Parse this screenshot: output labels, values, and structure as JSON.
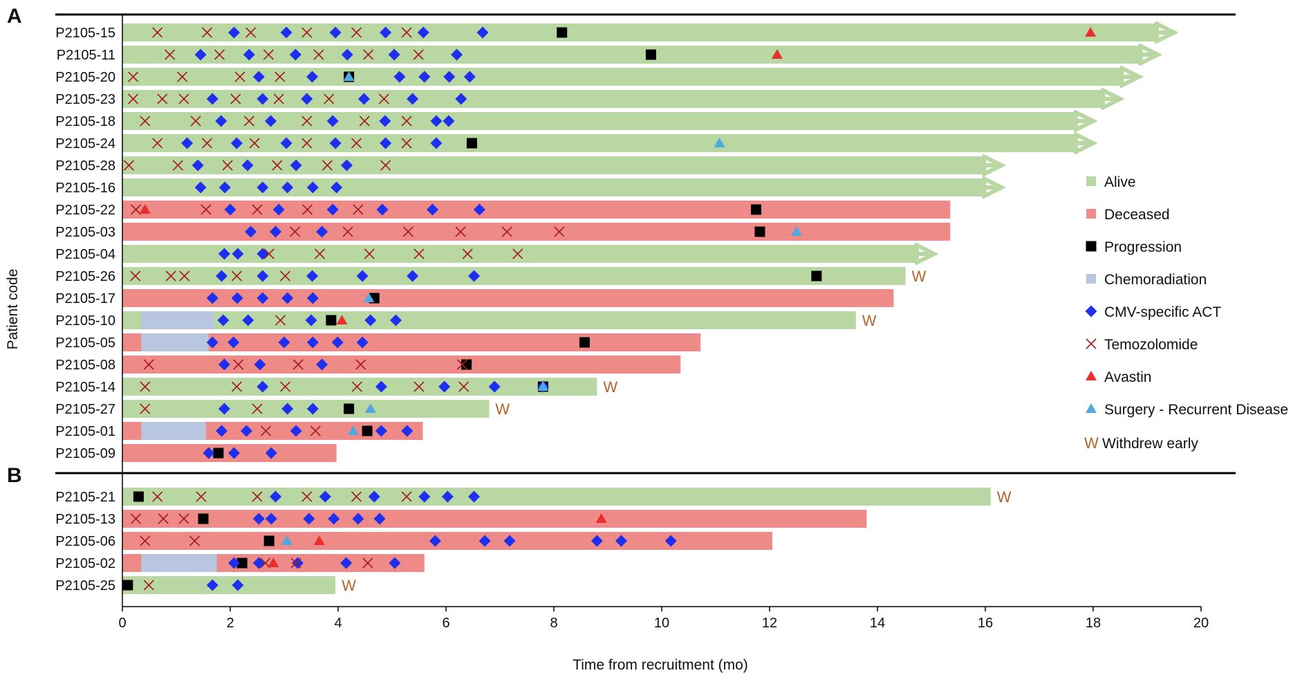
{
  "chart_data": {
    "type": "swimmer",
    "xlabel": "Time from recruitment (mo)",
    "ylabel": "Patient code",
    "xlim": [
      0,
      20
    ],
    "x_ticks": [
      0,
      2,
      4,
      6,
      8,
      10,
      12,
      14,
      16,
      18,
      20
    ],
    "colors": {
      "alive": "#b9d7a2",
      "deceased": "#ee8a87",
      "progression": "#000000",
      "chemoradiation": "#b9c6df",
      "act": "#1f2ff0",
      "temozolomide": "#a61c1c",
      "avastin": "#ea2d2d",
      "surgery": "#50a8e0",
      "withdrew": "#b3642c"
    },
    "legend": [
      {
        "key": "alive",
        "label": "Alive"
      },
      {
        "key": "deceased",
        "label": "Deceased"
      },
      {
        "key": "progression",
        "label": "Progression"
      },
      {
        "key": "chemoradiation",
        "label": "Chemoradiation"
      },
      {
        "key": "act",
        "label": "CMV-specific ACT"
      },
      {
        "key": "temozolomide",
        "label": "Temozolomide"
      },
      {
        "key": "avastin",
        "label": "Avastin"
      },
      {
        "key": "surgery",
        "label": "Surgery - Recurrent Disease"
      },
      {
        "key": "withdrew",
        "label": "Withdrew early",
        "symbol": "W"
      }
    ],
    "panels": [
      {
        "label": "A",
        "patients": [
          {
            "code": "P2105-15",
            "status": "alive",
            "end": 19.5,
            "arrow": true,
            "withdrew": false,
            "chemo": null,
            "temozolomide": [
              0.65,
              1.57,
              2.38,
              3.42,
              4.34,
              5.27
            ],
            "act": [
              2.07,
              3.04,
              3.95,
              4.88,
              5.58,
              6.68
            ],
            "progression": [
              8.15
            ],
            "avastin": [
              17.95
            ],
            "surgery": []
          },
          {
            "code": "P2105-11",
            "status": "alive",
            "end": 19.2,
            "arrow": true,
            "withdrew": false,
            "chemo": null,
            "temozolomide": [
              0.88,
              1.8,
              2.71,
              3.64,
              4.56,
              5.49
            ],
            "act": [
              1.45,
              2.35,
              3.21,
              4.17,
              5.04,
              6.2
            ],
            "progression": [
              9.8
            ],
            "avastin": [
              12.14
            ],
            "surgery": []
          },
          {
            "code": "P2105-20",
            "status": "alive",
            "end": 18.85,
            "arrow": true,
            "withdrew": false,
            "chemo": null,
            "temozolomide": [
              0.2,
              1.11,
              2.18,
              2.92
            ],
            "act": [
              2.53,
              3.52,
              5.14,
              5.6,
              6.06,
              6.44
            ],
            "progression": [
              4.2
            ],
            "avastin": [],
            "surgery": [
              4.2
            ]
          },
          {
            "code": "P2105-23",
            "status": "alive",
            "end": 18.5,
            "arrow": true,
            "withdrew": false,
            "chemo": null,
            "temozolomide": [
              0.2,
              0.74,
              1.14,
              2.1,
              2.9,
              3.83,
              4.85
            ],
            "act": [
              1.67,
              2.6,
              3.42,
              4.48,
              5.38,
              6.28
            ],
            "progression": [],
            "avastin": [],
            "surgery": []
          },
          {
            "code": "P2105-18",
            "status": "alive",
            "end": 18.0,
            "arrow": true,
            "withdrew": false,
            "chemo": null,
            "temozolomide": [
              0.42,
              1.36,
              2.35,
              3.42,
              4.49,
              5.27
            ],
            "act": [
              1.83,
              2.75,
              3.9,
              4.87,
              5.82,
              6.05
            ],
            "progression": [],
            "avastin": [],
            "surgery": []
          },
          {
            "code": "P2105-24",
            "status": "alive",
            "end": 18.0,
            "arrow": true,
            "withdrew": false,
            "chemo": null,
            "temozolomide": [
              0.65,
              1.57,
              2.45,
              3.42,
              4.34,
              5.27
            ],
            "act": [
              1.2,
              2.12,
              3.04,
              3.95,
              4.88,
              5.82
            ],
            "progression": [
              6.48
            ],
            "avastin": [],
            "surgery": [
              11.07
            ]
          },
          {
            "code": "P2105-28",
            "status": "alive",
            "end": 16.3,
            "arrow": true,
            "withdrew": false,
            "chemo": null,
            "temozolomide": [
              0.12,
              1.03,
              1.95,
              2.87,
              3.8,
              4.88
            ],
            "act": [
              1.4,
              2.32,
              3.22,
              4.16
            ],
            "progression": [],
            "avastin": [],
            "surgery": []
          },
          {
            "code": "P2105-16",
            "status": "alive",
            "end": 16.3,
            "arrow": true,
            "withdrew": false,
            "chemo": null,
            "temozolomide": [],
            "act": [
              1.45,
              1.9,
              2.6,
              3.06,
              3.53,
              3.97
            ],
            "progression": [],
            "avastin": [],
            "surgery": []
          },
          {
            "code": "P2105-22",
            "status": "deceased",
            "end": 15.35,
            "arrow": false,
            "withdrew": false,
            "chemo": null,
            "temozolomide": [
              0.25,
              1.55,
              2.5,
              3.43,
              4.37
            ],
            "act": [
              2.0,
              2.9,
              3.9,
              4.82,
              5.75,
              6.62
            ],
            "progression": [
              11.75
            ],
            "avastin": [
              0.42
            ],
            "surgery": []
          },
          {
            "code": "P2105-03",
            "status": "deceased",
            "end": 15.35,
            "arrow": false,
            "withdrew": false,
            "chemo": null,
            "temozolomide": [
              3.2,
              4.18,
              5.3,
              6.27,
              7.13,
              8.1
            ],
            "act": [
              2.38,
              2.84,
              3.7
            ],
            "progression": [
              11.82
            ],
            "avastin": [],
            "surgery": [
              12.5
            ]
          },
          {
            "code": "P2105-04",
            "status": "alive",
            "end": 15.05,
            "arrow": true,
            "withdrew": false,
            "chemo": null,
            "temozolomide": [
              2.72,
              3.66,
              4.58,
              5.5,
              6.4,
              7.33
            ],
            "act": [
              1.89,
              2.14,
              2.6
            ],
            "progression": [],
            "avastin": [],
            "surgery": []
          },
          {
            "code": "P2105-26",
            "status": "alive",
            "end": 14.52,
            "arrow": false,
            "withdrew": true,
            "chemo": null,
            "temozolomide": [
              0.24,
              0.9,
              1.15,
              2.12,
              3.02
            ],
            "act": [
              1.84,
              2.6,
              3.52,
              4.45,
              5.38,
              6.52
            ],
            "progression": [
              12.87
            ],
            "avastin": [],
            "surgery": []
          },
          {
            "code": "P2105-17",
            "status": "deceased",
            "end": 14.3,
            "arrow": false,
            "withdrew": false,
            "chemo": null,
            "temozolomide": [],
            "act": [
              1.67,
              2.13,
              2.6,
              3.06,
              3.53
            ],
            "progression": [
              4.67
            ],
            "avastin": [],
            "surgery": [
              4.57
            ]
          },
          {
            "code": "P2105-10",
            "status": "alive",
            "end": 13.6,
            "arrow": false,
            "withdrew": true,
            "chemo": [
              0.35,
              1.7
            ],
            "temozolomide": [
              2.93
            ],
            "act": [
              1.87,
              2.33,
              3.5,
              4.6,
              5.07
            ],
            "progression": [
              3.87
            ],
            "avastin": [
              4.07
            ],
            "surgery": []
          },
          {
            "code": "P2105-05",
            "status": "deceased",
            "end": 10.72,
            "arrow": false,
            "withdrew": false,
            "chemo": [
              0.35,
              1.6
            ],
            "temozolomide": [],
            "act": [
              1.67,
              2.06,
              3.0,
              3.53,
              3.99,
              4.45
            ],
            "progression": [
              8.57
            ],
            "avastin": [],
            "surgery": []
          },
          {
            "code": "P2105-08",
            "status": "deceased",
            "end": 10.35,
            "arrow": false,
            "withdrew": false,
            "chemo": null,
            "temozolomide": [
              0.49,
              2.15,
              3.26,
              4.42,
              6.3
            ],
            "act": [
              1.89,
              2.55,
              3.7
            ],
            "progression": [
              6.38
            ],
            "avastin": [],
            "surgery": []
          },
          {
            "code": "P2105-14",
            "status": "alive",
            "end": 8.8,
            "arrow": false,
            "withdrew": true,
            "chemo": null,
            "temozolomide": [
              0.42,
              2.12,
              3.02,
              4.35,
              5.5,
              6.33
            ],
            "act": [
              2.6,
              4.8,
              5.97,
              6.9,
              7.8
            ],
            "progression": [
              7.8
            ],
            "avastin": [],
            "surgery": [
              7.8
            ]
          },
          {
            "code": "P2105-27",
            "status": "alive",
            "end": 6.8,
            "arrow": false,
            "withdrew": true,
            "chemo": null,
            "temozolomide": [
              0.42,
              2.5
            ],
            "act": [
              1.89,
              3.06,
              3.53
            ],
            "progression": [
              4.2
            ],
            "avastin": [],
            "surgery": [
              4.6
            ]
          },
          {
            "code": "P2105-01",
            "status": "deceased",
            "end": 5.57,
            "arrow": false,
            "withdrew": false,
            "chemo": [
              0.35,
              1.55
            ],
            "temozolomide": [
              2.66,
              3.58
            ],
            "act": [
              1.84,
              2.3,
              3.22,
              4.8,
              5.28
            ],
            "progression": [
              4.54
            ],
            "avastin": [],
            "surgery": [
              4.28
            ]
          },
          {
            "code": "P2105-09",
            "status": "deceased",
            "end": 3.97,
            "arrow": false,
            "withdrew": false,
            "chemo": null,
            "temozolomide": [],
            "act": [
              1.6,
              2.07,
              2.76
            ],
            "progression": [
              1.78
            ],
            "avastin": [],
            "surgery": []
          }
        ]
      },
      {
        "label": "B",
        "patients": [
          {
            "code": "P2105-21",
            "status": "alive",
            "end": 16.1,
            "arrow": false,
            "withdrew": true,
            "chemo": null,
            "temozolomide": [
              0.65,
              1.46,
              2.5,
              3.42,
              4.34,
              5.27
            ],
            "act": [
              2.84,
              3.76,
              4.67,
              5.6,
              6.03,
              6.52
            ],
            "progression": [
              0.3
            ],
            "avastin": [],
            "surgery": []
          },
          {
            "code": "P2105-13",
            "status": "deceased",
            "end": 13.8,
            "arrow": false,
            "withdrew": false,
            "chemo": null,
            "temozolomide": [
              0.25,
              0.76,
              1.14
            ],
            "act": [
              2.53,
              2.76,
              3.46,
              3.92,
              4.37,
              4.77
            ],
            "progression": [
              1.5
            ],
            "avastin": [
              8.88
            ],
            "surgery": []
          },
          {
            "code": "P2105-06",
            "status": "deceased",
            "end": 12.05,
            "arrow": false,
            "withdrew": false,
            "chemo": null,
            "temozolomide": [
              0.42,
              1.34
            ],
            "act": [
              5.8,
              6.72,
              7.18,
              8.8,
              9.25,
              10.17
            ],
            "progression": [
              2.72
            ],
            "avastin": [
              3.65
            ],
            "surgery": [
              3.05
            ]
          },
          {
            "code": "P2105-02",
            "status": "deceased",
            "end": 5.6,
            "arrow": false,
            "withdrew": false,
            "chemo": [
              0.35,
              1.75
            ],
            "temozolomide": [
              2.65,
              3.22,
              4.55
            ],
            "act": [
              2.07,
              2.53,
              3.25,
              4.15,
              5.05
            ],
            "progression": [
              2.22
            ],
            "avastin": [
              2.8
            ],
            "surgery": []
          },
          {
            "code": "P2105-25",
            "status": "alive",
            "end": 3.95,
            "arrow": false,
            "withdrew": true,
            "chemo": null,
            "temozolomide": [
              0.49
            ],
            "act": [
              1.67,
              2.14
            ],
            "progression": [
              0.1
            ],
            "avastin": [],
            "surgery": []
          }
        ]
      }
    ]
  }
}
